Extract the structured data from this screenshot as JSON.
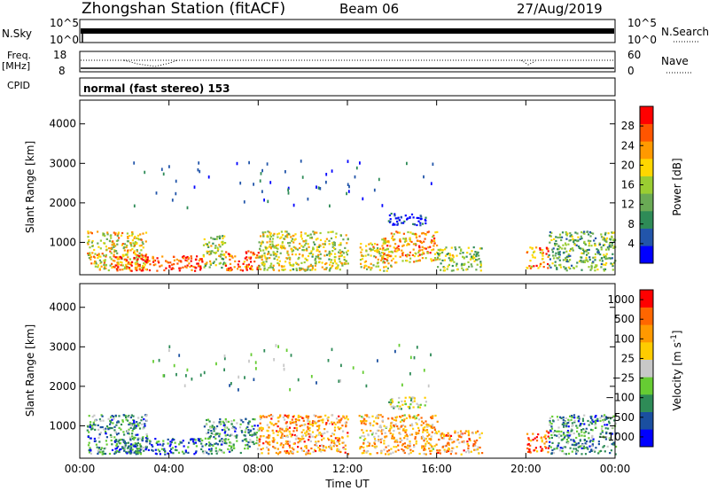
{
  "header": {
    "station": "Zhongshan Station (fitACF)",
    "beam": "Beam 06",
    "date": "27/Aug/2019"
  },
  "aux_panels": {
    "nsky_label": "N.Sky",
    "nsky_ticks": [
      "10^5",
      "10^0"
    ],
    "nsearch_label": "N.Search",
    "nsearch_ticks": [
      "10^5",
      "10^0"
    ],
    "freq_label": "Freq.",
    "freq_unit": "[MHz]",
    "freq_ticks": [
      "18",
      "8"
    ],
    "nave_label": "Nave",
    "nave_ticks": [
      "60",
      "0"
    ],
    "cpid_label": "CPID",
    "cpid_text": "normal (fast stereo) 153"
  },
  "chart_data": [
    {
      "type": "heatmap",
      "title": "",
      "ylabel": "Slant Range [km]",
      "xlabel": "",
      "yticks": [
        1000,
        2000,
        3000,
        4000
      ],
      "ylim": [
        180,
        4600
      ],
      "xlim_hours": [
        0,
        24
      ],
      "colorbar": {
        "label": "Power [dB]",
        "ticks": [
          "4",
          "8",
          "12",
          "16",
          "20",
          "24",
          "28"
        ],
        "range": [
          0,
          32
        ],
        "colors": [
          "#0000ff",
          "#2255aa",
          "#2e8b57",
          "#6aaa55",
          "#9acd32",
          "#ffd700",
          "#ff9900",
          "#ff5500",
          "#ff0000"
        ]
      },
      "regions": [
        {
          "t0": 0.3,
          "t1": 3.0,
          "r0": 300,
          "r1": 1300,
          "level": 0.6
        },
        {
          "t0": 1.5,
          "t1": 5.5,
          "r0": 300,
          "r1": 700,
          "level": 0.9
        },
        {
          "t0": 5.5,
          "t1": 6.5,
          "r0": 350,
          "r1": 1200,
          "level": 0.5
        },
        {
          "t0": 6.5,
          "t1": 8.0,
          "r0": 300,
          "r1": 800,
          "level": 0.85
        },
        {
          "t0": 8.0,
          "t1": 12.0,
          "r0": 300,
          "r1": 1300,
          "level": 0.55
        },
        {
          "t0": 12.5,
          "t1": 14.0,
          "r0": 300,
          "r1": 1000,
          "level": 0.6
        },
        {
          "t0": 13.5,
          "t1": 16.0,
          "r0": 500,
          "r1": 1300,
          "level": 0.7
        },
        {
          "t0": 13.8,
          "t1": 15.5,
          "r0": 1450,
          "r1": 1750,
          "level": 0.05
        },
        {
          "t0": 16.0,
          "t1": 18.0,
          "r0": 300,
          "r1": 900,
          "level": 0.45
        },
        {
          "t0": 20.0,
          "t1": 21.0,
          "r0": 350,
          "r1": 900,
          "level": 0.75
        },
        {
          "t0": 21.0,
          "t1": 24.0,
          "r0": 300,
          "r1": 1300,
          "level": 0.4
        }
      ]
    },
    {
      "type": "heatmap",
      "title": "",
      "ylabel": "Slant Range [km]",
      "xlabel": "Time UT",
      "xticks": [
        "00:00",
        "04:00",
        "08:00",
        "12:00",
        "16:00",
        "20:00",
        "00:00"
      ],
      "yticks": [
        1000,
        2000,
        3000,
        4000
      ],
      "ylim": [
        180,
        4600
      ],
      "xlim_hours": [
        0,
        24
      ],
      "colorbar": {
        "label": "Velocity [m s^-1]",
        "ticks": [
          "1000",
          "500",
          "100",
          "25",
          "−25",
          "−100",
          "−500",
          "−1000"
        ],
        "colors": [
          "#0000ff",
          "#1a4fa0",
          "#2e8b57",
          "#66cc33",
          "#c8c8c8",
          "#ffcc00",
          "#ff9900",
          "#ff6600",
          "#ff0000"
        ]
      },
      "regions": [
        {
          "t0": 0.3,
          "t1": 3.0,
          "r0": 300,
          "r1": 1300,
          "level": 0.3
        },
        {
          "t0": 1.5,
          "t1": 5.5,
          "r0": 300,
          "r1": 700,
          "level": 0.2
        },
        {
          "t0": 5.5,
          "t1": 8.0,
          "r0": 300,
          "r1": 1200,
          "level": 0.3
        },
        {
          "t0": 8.0,
          "t1": 12.0,
          "r0": 300,
          "r1": 1300,
          "level": 0.7
        },
        {
          "t0": 12.5,
          "t1": 16.0,
          "r0": 300,
          "r1": 1300,
          "level": 0.65
        },
        {
          "t0": 13.8,
          "t1": 15.5,
          "r0": 1450,
          "r1": 1750,
          "level": 0.45
        },
        {
          "t0": 16.0,
          "t1": 18.0,
          "r0": 300,
          "r1": 900,
          "level": 0.7
        },
        {
          "t0": 20.0,
          "t1": 21.0,
          "r0": 350,
          "r1": 900,
          "level": 0.8
        },
        {
          "t0": 21.0,
          "t1": 24.0,
          "r0": 300,
          "r1": 1300,
          "level": 0.3
        }
      ]
    }
  ]
}
